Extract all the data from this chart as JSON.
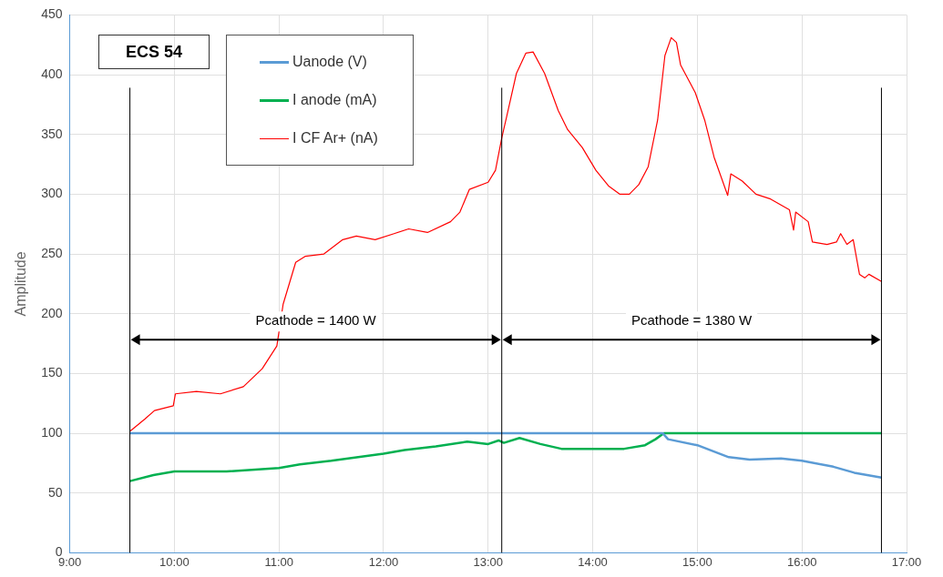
{
  "chart_data": {
    "type": "line",
    "ylabel": "Amplitude",
    "annotations": [
      "ECS 54",
      "Pcathode = 1400 W",
      "Pcathode = 1380 W"
    ],
    "xlim": [
      9,
      17
    ],
    "xticks": [
      {
        "value": 9,
        "label": "9:00"
      },
      {
        "value": 10,
        "label": "10:00"
      },
      {
        "value": 11,
        "label": "11:00"
      },
      {
        "value": 12,
        "label": "12:00"
      },
      {
        "value": 13,
        "label": "13:00"
      },
      {
        "value": 14,
        "label": "14:00"
      },
      {
        "value": 15,
        "label": "15:00"
      },
      {
        "value": 16,
        "label": "16:00"
      },
      {
        "value": 17,
        "label": "17:00"
      }
    ],
    "ylim": [
      0,
      450
    ],
    "yticks": [
      0,
      50,
      100,
      150,
      200,
      250,
      300,
      350,
      400,
      450
    ],
    "grid": true,
    "legend": "top left",
    "marker": "none",
    "line_style": "solid",
    "ref_lines": [
      {
        "axis": "x",
        "value": 9.575,
        "color": "#000000"
      },
      {
        "axis": "x",
        "value": 13.13,
        "color": "#000000"
      },
      {
        "axis": "x",
        "value": 16.76,
        "color": "#000000"
      }
    ],
    "series": [
      {
        "name": "Uanode (V)",
        "color": "#5b9bd5",
        "x": [
          9.575,
          14.67,
          14.72,
          15.0,
          15.3,
          15.5,
          15.8,
          16.0,
          16.3,
          16.5,
          16.76
        ],
        "values": [
          100,
          100,
          95,
          90,
          80,
          78,
          79,
          77,
          72,
          67,
          63
        ]
      },
      {
        "name": "I anode (mA)",
        "color": "#00b050",
        "x": [
          9.575,
          9.8,
          10.0,
          10.5,
          11.0,
          11.2,
          11.5,
          12.0,
          12.2,
          12.5,
          12.8,
          13.0,
          13.1,
          13.15,
          13.3,
          13.5,
          13.7,
          14.0,
          14.3,
          14.5,
          14.6,
          14.68,
          16.76
        ],
        "values": [
          60,
          65,
          68,
          68,
          71,
          74,
          77,
          83,
          86,
          89,
          93,
          91,
          94,
          92,
          96,
          91,
          87,
          87,
          87,
          90,
          95,
          100,
          100
        ]
      },
      {
        "name": "I CF Ar+ (nA)",
        "color": "#ff0000",
        "x": [
          9.58,
          9.72,
          9.81,
          9.99,
          10.01,
          10.21,
          10.44,
          10.66,
          10.84,
          10.98,
          11.04,
          11.16,
          11.25,
          11.43,
          11.61,
          11.74,
          11.92,
          12.1,
          12.24,
          12.42,
          12.64,
          12.73,
          12.82,
          13.0,
          13.07,
          13.13,
          13.18,
          13.27,
          13.36,
          13.43,
          13.54,
          13.67,
          13.76,
          13.9,
          14.03,
          14.15,
          14.26,
          14.35,
          14.44,
          14.53,
          14.62,
          14.69,
          14.75,
          14.8,
          14.84,
          14.98,
          15.07,
          15.16,
          15.29,
          15.32,
          15.43,
          15.56,
          15.7,
          15.88,
          15.92,
          15.94,
          16.06,
          16.1,
          16.24,
          16.33,
          16.37,
          16.43,
          16.49,
          16.55,
          16.6,
          16.64,
          16.76
        ],
        "values": [
          102,
          112,
          119,
          123,
          133,
          135,
          133,
          139,
          154,
          173,
          208,
          243,
          248,
          250,
          262,
          265,
          262,
          267,
          271,
          268,
          277,
          285,
          304,
          310,
          320,
          347,
          366,
          401,
          418,
          419,
          401,
          370,
          354,
          339,
          320,
          307,
          300,
          300,
          308,
          323,
          362,
          416,
          431,
          427,
          408,
          385,
          362,
          331,
          299,
          317,
          311,
          300,
          296,
          287,
          270,
          285,
          277,
          260,
          258,
          260,
          267,
          258,
          262,
          233,
          230,
          233,
          227
        ]
      }
    ]
  }
}
